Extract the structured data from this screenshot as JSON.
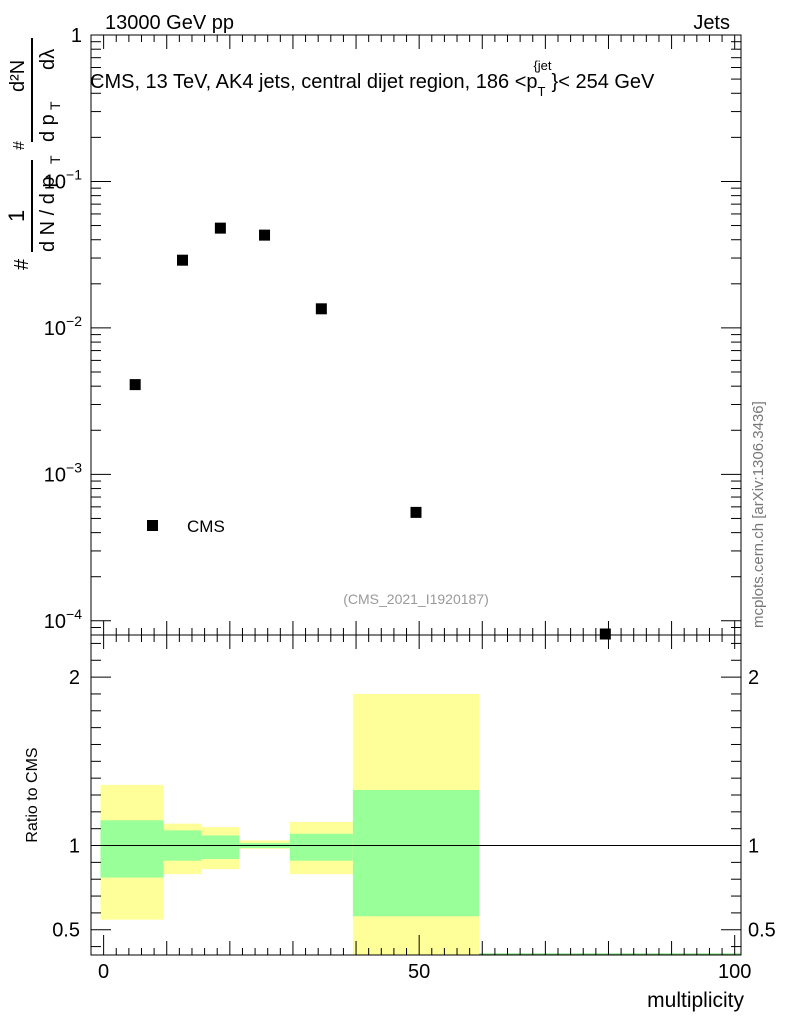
{
  "header": {
    "left": "13000 GeV pp",
    "right": "Jets"
  },
  "side_label": "mcplots.cern.ch [arXiv:1306.3436]",
  "colors": {
    "stat_band": "#99ff99",
    "total_band": "#ffff99",
    "marker": "#000000"
  },
  "chart_data": [
    {
      "type": "scatter",
      "title": "CMS, 13 TeV, AK4 jets, central dijet region, 186 <p_T^{jet}< 254 GeV",
      "title_parts": {
        "main": "CMS, 13 TeV, AK4 jets, central dijet region, 186 <p",
        "sub": "T",
        "sup": "{jet",
        "tail": "}< 254 GeV"
      },
      "ylabel_parts": {
        "hash": "#",
        "one": "1",
        "denom": "d N / d p",
        "sub": "T",
        "hash2": "#",
        "numer": "d²N",
        "numer_den": "d p",
        "numer_den_sub": "T",
        "dlambda": "dλ"
      },
      "xlabel": "",
      "yscale": "log",
      "ylim": [
        8e-05,
        1
      ],
      "xlim": [
        -2,
        101
      ],
      "y_ticks": [
        {
          "value": 1,
          "label": "1",
          "exp": ""
        },
        {
          "value": 0.1,
          "label": "10",
          "exp": "−1"
        },
        {
          "value": 0.01,
          "label": "10",
          "exp": "−2"
        },
        {
          "value": 0.001,
          "label": "10",
          "exp": "−3"
        },
        {
          "value": 0.0001,
          "label": "10",
          "exp": "−4"
        }
      ],
      "legend": {
        "entry": "CMS",
        "placement": "bottom-left"
      },
      "watermark": "(CMS_2021_I1920187)",
      "series": [
        {
          "name": "CMS",
          "x": [
            5,
            12.5,
            18.5,
            25.5,
            34.5,
            49.5,
            79.5
          ],
          "y": [
            0.0041,
            0.029,
            0.048,
            0.043,
            0.0135,
            0.00055,
            7e-05
          ]
        }
      ]
    },
    {
      "type": "area",
      "title": "",
      "xlabel": "multiplicity",
      "ylabel": "Ratio to CMS",
      "ylim": [
        0.35,
        2.25
      ],
      "xlim": [
        -2,
        101
      ],
      "x_ticks": [
        0,
        50,
        100
      ],
      "y_ticks": [
        {
          "value": 0.5,
          "label": "0.5"
        },
        {
          "value": 1,
          "label": "1"
        },
        {
          "value": 2,
          "label": "2"
        }
      ],
      "reference_line": 1,
      "bins": [
        {
          "x0": -0.5,
          "x1": 9.5,
          "stat": [
            0.81,
            1.15
          ],
          "total": [
            0.56,
            1.36
          ]
        },
        {
          "x0": 9.5,
          "x1": 15.5,
          "stat": [
            0.91,
            1.09
          ],
          "total": [
            0.83,
            1.13
          ]
        },
        {
          "x0": 15.5,
          "x1": 21.5,
          "stat": [
            0.92,
            1.06
          ],
          "total": [
            0.86,
            1.11
          ]
        },
        {
          "x0": 21.5,
          "x1": 29.5,
          "stat": [
            0.985,
            1.015
          ],
          "total": [
            0.98,
            1.03
          ]
        },
        {
          "x0": 29.5,
          "x1": 39.5,
          "stat": [
            0.91,
            1.07
          ],
          "total": [
            0.83,
            1.14
          ]
        },
        {
          "x0": 39.5,
          "x1": 59.5,
          "stat": [
            0.58,
            1.33
          ],
          "total": [
            0.2,
            1.9
          ]
        }
      ]
    }
  ]
}
